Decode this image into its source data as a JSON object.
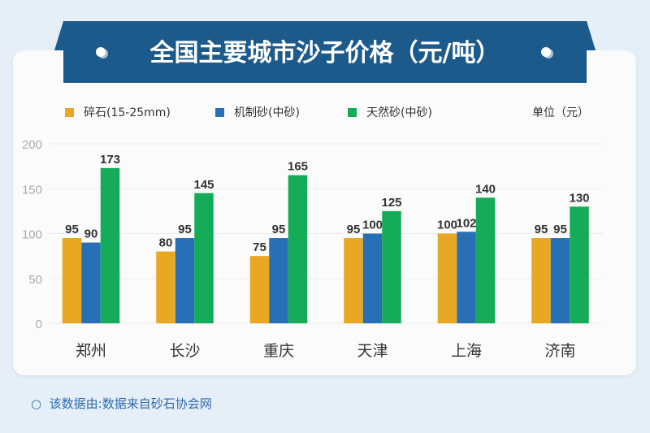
{
  "title": "全国主要城市沙子价格（元/吨）",
  "unit": "单位（元）",
  "footer_icon": "circle-icon",
  "footer": "该数据由:数据来自砂石协会网",
  "chart_data": {
    "type": "bar",
    "title": "全国主要城市沙子价格（元/吨）",
    "categories": [
      "郑州",
      "长沙",
      "重庆",
      "天津",
      "上海",
      "济南"
    ],
    "series": [
      {
        "name": "碎石(15-25mm)",
        "color": "#e8a823",
        "values": [
          95,
          80,
          75,
          95,
          100,
          95
        ]
      },
      {
        "name": "机制砂(中砂)",
        "color": "#2870b5",
        "values": [
          90,
          95,
          95,
          100,
          102,
          95
        ]
      },
      {
        "name": "天然砂(中砂)",
        "color": "#14ac58",
        "values": [
          173,
          145,
          165,
          125,
          140,
          130
        ]
      }
    ],
    "yticks": [
      0,
      50,
      100,
      150,
      200
    ],
    "ylim": [
      0,
      200
    ],
    "grid": true,
    "legend": "top-left"
  }
}
